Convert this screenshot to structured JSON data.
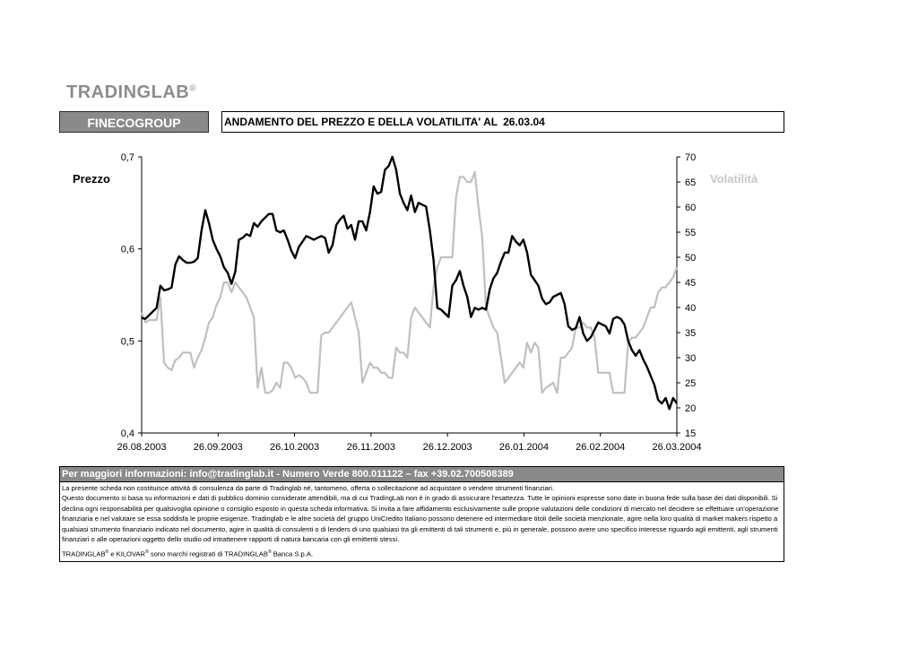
{
  "logo": {
    "text": "TRADINGLAB",
    "reg": "®"
  },
  "header": {
    "company": "FINECOGROUP",
    "title": "ANDAMENTO DEL PREZZO E DELLA VOLATILITA' AL",
    "date": "26.03.04"
  },
  "chart_data": {
    "type": "line",
    "left_axis_label": "Prezzo",
    "right_axis_label": "Volatilità",
    "left_ylim": [
      0.4,
      0.7
    ],
    "right_ylim": [
      15,
      70
    ],
    "left_ticks": [
      "0,4",
      "0,5",
      "0,6",
      "0,7"
    ],
    "right_ticks": [
      "15",
      "20",
      "25",
      "30",
      "35",
      "40",
      "45",
      "50",
      "55",
      "60",
      "65",
      "70"
    ],
    "x_ticks": [
      "26.08.2003",
      "26.09.2003",
      "26.10.2003",
      "26.11.2003",
      "26.12.2003",
      "26.01.2004",
      "26.02.2004",
      "26.03.2004"
    ],
    "colors": {
      "price": "#000000",
      "volatility": "#c0c0c0"
    },
    "series": [
      {
        "name": "Prezzo",
        "axis": "left",
        "values": [
          [
            0,
            0.525
          ],
          [
            1,
            0.524
          ],
          [
            2,
            0.528
          ],
          [
            3,
            0.532
          ],
          [
            4,
            0.536
          ],
          [
            5,
            0.56
          ],
          [
            6,
            0.555
          ],
          [
            7,
            0.556
          ],
          [
            8,
            0.558
          ],
          [
            9,
            0.583
          ],
          [
            10,
            0.592
          ],
          [
            11,
            0.588
          ],
          [
            12,
            0.585
          ],
          [
            13,
            0.585
          ],
          [
            14,
            0.586
          ],
          [
            15,
            0.59
          ],
          [
            16,
            0.62
          ],
          [
            17,
            0.642
          ],
          [
            18,
            0.628
          ],
          [
            19,
            0.61
          ],
          [
            20,
            0.6
          ],
          [
            21,
            0.592
          ],
          [
            22,
            0.58
          ],
          [
            23,
            0.574
          ],
          [
            24,
            0.562
          ],
          [
            25,
            0.575
          ],
          [
            26,
            0.61
          ],
          [
            27,
            0.612
          ],
          [
            28,
            0.616
          ],
          [
            29,
            0.614
          ],
          [
            30,
            0.628
          ],
          [
            31,
            0.624
          ],
          [
            32,
            0.63
          ],
          [
            33,
            0.634
          ],
          [
            34,
            0.638
          ],
          [
            35,
            0.638
          ],
          [
            36,
            0.62
          ],
          [
            37,
            0.618
          ],
          [
            38,
            0.62
          ],
          [
            39,
            0.61
          ],
          [
            40,
            0.598
          ],
          [
            41,
            0.59
          ],
          [
            42,
            0.602
          ],
          [
            43,
            0.608
          ],
          [
            44,
            0.614
          ],
          [
            45,
            0.612
          ],
          [
            46,
            0.61
          ],
          [
            47,
            0.612
          ],
          [
            48,
            0.614
          ],
          [
            49,
            0.612
          ],
          [
            50,
            0.596
          ],
          [
            51,
            0.604
          ],
          [
            52,
            0.626
          ],
          [
            53,
            0.632
          ],
          [
            54,
            0.636
          ],
          [
            55,
            0.622
          ],
          [
            56,
            0.626
          ],
          [
            57,
            0.61
          ],
          [
            58,
            0.63
          ],
          [
            59,
            0.63
          ],
          [
            60,
            0.62
          ],
          [
            61,
            0.64
          ],
          [
            62,
            0.668
          ],
          [
            63,
            0.66
          ],
          [
            64,
            0.662
          ],
          [
            65,
            0.686
          ],
          [
            66,
            0.69
          ],
          [
            67,
            0.7
          ],
          [
            68,
            0.686
          ],
          [
            69,
            0.66
          ],
          [
            70,
            0.65
          ],
          [
            71,
            0.642
          ],
          [
            72,
            0.658
          ],
          [
            73,
            0.64
          ],
          [
            74,
            0.65
          ],
          [
            75,
            0.648
          ],
          [
            76,
            0.646
          ],
          [
            77,
            0.62
          ],
          [
            78,
            0.588
          ],
          [
            79,
            0.536
          ],
          [
            80,
            0.534
          ],
          [
            81,
            0.53
          ],
          [
            82,
            0.526
          ],
          [
            83,
            0.56
          ],
          [
            84,
            0.566
          ],
          [
            85,
            0.576
          ],
          [
            86,
            0.56
          ],
          [
            87,
            0.548
          ],
          [
            88,
            0.526
          ],
          [
            89,
            0.536
          ],
          [
            90,
            0.534
          ],
          [
            91,
            0.536
          ],
          [
            92,
            0.534
          ],
          [
            93,
            0.556
          ],
          [
            94,
            0.568
          ],
          [
            95,
            0.574
          ],
          [
            96,
            0.586
          ],
          [
            97,
            0.596
          ],
          [
            98,
            0.596
          ],
          [
            99,
            0.614
          ],
          [
            100,
            0.608
          ],
          [
            101,
            0.604
          ],
          [
            102,
            0.61
          ],
          [
            103,
            0.596
          ],
          [
            104,
            0.572
          ],
          [
            105,
            0.566
          ],
          [
            106,
            0.56
          ],
          [
            107,
            0.546
          ],
          [
            108,
            0.54
          ],
          [
            109,
            0.542
          ],
          [
            110,
            0.548
          ],
          [
            111,
            0.55
          ],
          [
            112,
            0.552
          ],
          [
            113,
            0.54
          ],
          [
            114,
            0.516
          ],
          [
            115,
            0.512
          ],
          [
            116,
            0.514
          ],
          [
            117,
            0.526
          ],
          [
            118,
            0.508
          ],
          [
            119,
            0.5
          ],
          [
            120,
            0.504
          ],
          [
            121,
            0.512
          ],
          [
            122,
            0.52
          ],
          [
            123,
            0.518
          ],
          [
            124,
            0.516
          ],
          [
            125,
            0.508
          ],
          [
            126,
            0.524
          ],
          [
            127,
            0.526
          ],
          [
            128,
            0.524
          ],
          [
            129,
            0.518
          ],
          [
            130,
            0.5
          ],
          [
            131,
            0.49
          ],
          [
            132,
            0.484
          ],
          [
            133,
            0.49
          ],
          [
            134,
            0.48
          ],
          [
            135,
            0.472
          ],
          [
            136,
            0.462
          ],
          [
            137,
            0.452
          ],
          [
            138,
            0.436
          ],
          [
            139,
            0.432
          ],
          [
            140,
            0.438
          ],
          [
            141,
            0.426
          ],
          [
            142,
            0.438
          ],
          [
            143,
            0.432
          ]
        ]
      },
      {
        "name": "Volatilità",
        "axis": "right",
        "values": [
          [
            0,
            39
          ],
          [
            1,
            37
          ],
          [
            2,
            37.5
          ],
          [
            3,
            37.5
          ],
          [
            4,
            37.5
          ],
          [
            5,
            42
          ],
          [
            6,
            29
          ],
          [
            7,
            28
          ],
          [
            8,
            27.5
          ],
          [
            9,
            29.5
          ],
          [
            10,
            30
          ],
          [
            11,
            31
          ],
          [
            12,
            31
          ],
          [
            13,
            31
          ],
          [
            14,
            28
          ],
          [
            15,
            30
          ],
          [
            16,
            31.5
          ],
          [
            17,
            34
          ],
          [
            18,
            37
          ],
          [
            19,
            38
          ],
          [
            20,
            40.5
          ],
          [
            21,
            42
          ],
          [
            22,
            45
          ],
          [
            23,
            45
          ],
          [
            24,
            43
          ],
          [
            25,
            45
          ],
          [
            26,
            44
          ],
          [
            27,
            43
          ],
          [
            28,
            42
          ],
          [
            29,
            40
          ],
          [
            30,
            38
          ],
          [
            31,
            24
          ],
          [
            32,
            28
          ],
          [
            33,
            23
          ],
          [
            34,
            23
          ],
          [
            35,
            23.5
          ],
          [
            36,
            25
          ],
          [
            37,
            24
          ],
          [
            38,
            29
          ],
          [
            39,
            29
          ],
          [
            40,
            28
          ],
          [
            41,
            26
          ],
          [
            42,
            26.5
          ],
          [
            43,
            26
          ],
          [
            44,
            25
          ],
          [
            45,
            23
          ],
          [
            46,
            23
          ],
          [
            47,
            23
          ],
          [
            48,
            34.5
          ],
          [
            49,
            35
          ],
          [
            50,
            35
          ],
          [
            51,
            36
          ],
          [
            52,
            37
          ],
          [
            53,
            38
          ],
          [
            54,
            39
          ],
          [
            55,
            40
          ],
          [
            56,
            41
          ],
          [
            57,
            38
          ],
          [
            58,
            35
          ],
          [
            59,
            25
          ],
          [
            60,
            27
          ],
          [
            61,
            29
          ],
          [
            62,
            28
          ],
          [
            63,
            28
          ],
          [
            64,
            27
          ],
          [
            65,
            27
          ],
          [
            66,
            26
          ],
          [
            67,
            26
          ],
          [
            68,
            32
          ],
          [
            69,
            31
          ],
          [
            70,
            31
          ],
          [
            71,
            30
          ],
          [
            72,
            38
          ],
          [
            73,
            40
          ],
          [
            74,
            39
          ],
          [
            75,
            38
          ],
          [
            76,
            37
          ],
          [
            77,
            36
          ],
          [
            78,
            44
          ],
          [
            79,
            48
          ],
          [
            80,
            50
          ],
          [
            81,
            50
          ],
          [
            82,
            50
          ],
          [
            83,
            50
          ],
          [
            84,
            62
          ],
          [
            85,
            66
          ],
          [
            86,
            66
          ],
          [
            87,
            65
          ],
          [
            88,
            65
          ],
          [
            89,
            67
          ],
          [
            90,
            60
          ],
          [
            91,
            54
          ],
          [
            92,
            40
          ],
          [
            93,
            38
          ],
          [
            94,
            36
          ],
          [
            95,
            35
          ],
          [
            96,
            30
          ],
          [
            97,
            25
          ],
          [
            98,
            26
          ],
          [
            99,
            27
          ],
          [
            100,
            28
          ],
          [
            101,
            29
          ],
          [
            102,
            28
          ],
          [
            103,
            33
          ],
          [
            104,
            31
          ],
          [
            105,
            33
          ],
          [
            106,
            32
          ],
          [
            107,
            23
          ],
          [
            108,
            24
          ],
          [
            109,
            24.5
          ],
          [
            110,
            25
          ],
          [
            111,
            23
          ],
          [
            112,
            30
          ],
          [
            113,
            30
          ],
          [
            114,
            31
          ],
          [
            115,
            32
          ],
          [
            116,
            36
          ],
          [
            117,
            36
          ],
          [
            118,
            37
          ],
          [
            119,
            36
          ],
          [
            120,
            36
          ],
          [
            121,
            34
          ],
          [
            122,
            27
          ],
          [
            123,
            27
          ],
          [
            124,
            27
          ],
          [
            125,
            27
          ],
          [
            126,
            23
          ],
          [
            127,
            23
          ],
          [
            128,
            23
          ],
          [
            129,
            23
          ],
          [
            130,
            33
          ],
          [
            131,
            34
          ],
          [
            132,
            34
          ],
          [
            133,
            35
          ],
          [
            134,
            36
          ],
          [
            135,
            38
          ],
          [
            136,
            40
          ],
          [
            137,
            40
          ],
          [
            138,
            43
          ],
          [
            139,
            44
          ],
          [
            140,
            44
          ],
          [
            141,
            45
          ],
          [
            142,
            46
          ],
          [
            143,
            48
          ]
        ]
      }
    ]
  },
  "info": {
    "header": "Per maggiori informazioni: info@tradinglab.it - Numero Verde 800.011122 – fax +39.02.700508389",
    "line1": "La presente scheda non costituisce attività di consulenza da parte di Tradinglab né, tantomeno, offerta o sollecitazione ad acquistare o vendere strumenti finanziari.",
    "line2": "Questo documento si basa su informazioni e dati di pubblico dominio considerate attendibili, ma di cui TradingLab non è in grado di assicurare l'esattezza. Tutte le opinioni espresse sono date in buona fede sulla base dei dati disponibili. Si declina ogni responsabilità per qualsivoglia opinione o consiglio esposto in questa scheda informativa. Si invita a fare affidamento esclusivamente sulle proprie valutazioni delle condizioni di mercato nel decidere se effettuare un'operazione finanziaria e nel valutare se essa soddisfa le proprie esigenze. Tradinglab e le altre società del gruppo UniCredito Italiano possono detenere ed intermediare titoli delle società menzionate, agire nella loro qualità di market makers rispetto a qualsiasi strumento finanziario indicato nel documento, agire in qualità di consulenti o di lenders di uno qualsiasi tra gli emittenti di tali strumenti e, più in generale, possono avere uno specifico interesse riguardo agli emittenti, agli strumenti finanziari o alle operazioni oggetto dello studio od intrattenere rapporti di natura bancaria con gli emittenti stessi.",
    "tm_a": "TRADINGLAB",
    "tm_b": " e KILOVAR",
    "tm_c": " sono marchi registrati di TRADINGLAB",
    "tm_d": "  Banca S.p.A.",
    "reg": "®"
  }
}
